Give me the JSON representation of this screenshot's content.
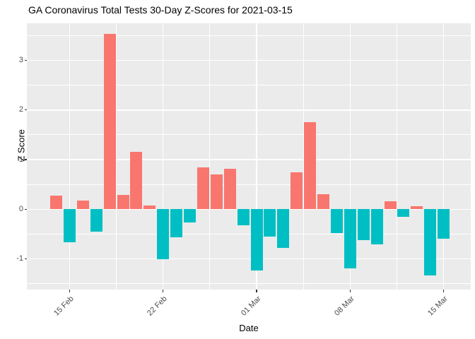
{
  "title": "GA Coronavirus Total Tests 30-Day Z-Scores for 2021-03-15",
  "chart_data": {
    "type": "bar",
    "title": "GA Coronavirus Total Tests 30-Day Z-Scores for 2021-03-15",
    "xlabel": "Date",
    "ylabel": "Z Score",
    "x": [
      "2021-02-14",
      "2021-02-15",
      "2021-02-16",
      "2021-02-17",
      "2021-02-18",
      "2021-02-19",
      "2021-02-20",
      "2021-02-21",
      "2021-02-22",
      "2021-02-23",
      "2021-02-24",
      "2021-02-25",
      "2021-02-26",
      "2021-02-27",
      "2021-02-28",
      "2021-03-01",
      "2021-03-02",
      "2021-03-03",
      "2021-03-04",
      "2021-03-05",
      "2021-03-06",
      "2021-03-07",
      "2021-03-08",
      "2021-03-09",
      "2021-03-10",
      "2021-03-11",
      "2021-03-12",
      "2021-03-13",
      "2021-03-14",
      "2021-03-15"
    ],
    "values": [
      0.27,
      -0.67,
      0.18,
      -0.45,
      3.53,
      0.29,
      1.16,
      0.08,
      -1.01,
      -0.56,
      -0.27,
      0.85,
      0.7,
      0.81,
      -0.33,
      -1.24,
      -0.55,
      -0.78,
      0.74,
      1.76,
      0.31,
      -0.48,
      -1.19,
      -0.62,
      -0.71,
      0.16,
      -0.15,
      0.06,
      -1.34,
      -0.6
    ],
    "x_ticks": [
      {
        "label": "15 Feb",
        "day": 1
      },
      {
        "label": "22 Feb",
        "day": 8
      },
      {
        "label": "01 Mar",
        "day": 15
      },
      {
        "label": "08 Mar",
        "day": 22
      },
      {
        "label": "15 Mar",
        "day": 29
      }
    ],
    "y_ticks": [
      -1,
      0,
      1,
      2,
      3
    ],
    "ylim": [
      -1.62,
      3.75
    ],
    "grid": "on",
    "legend": "none",
    "colors": {
      "positive": "#F8766D",
      "negative": "#00BFC4",
      "panel_bg": "#EBEBEB",
      "grid": "#FFFFFF",
      "tick_label": "#4D4D4D",
      "tick_mark": "#333333",
      "text": "#000000"
    }
  }
}
